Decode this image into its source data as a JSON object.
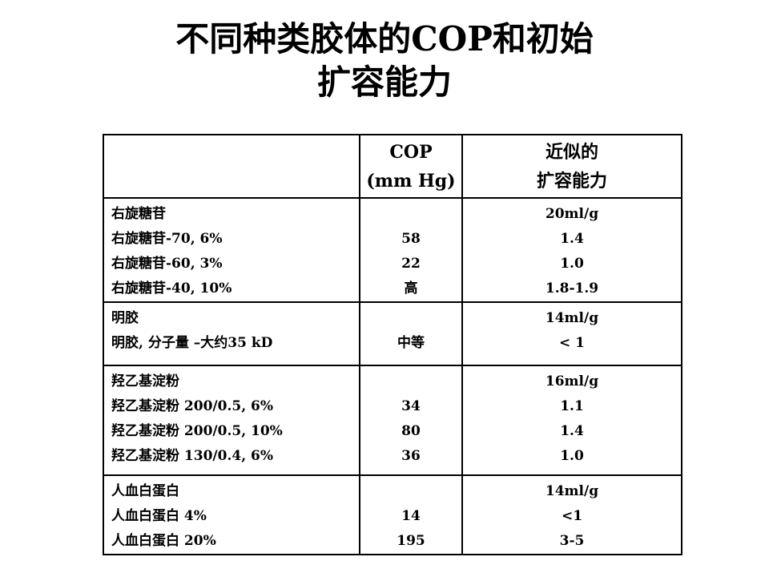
{
  "title": {
    "line1": "不同种类胶体的COP和初始",
    "line2": "扩容能力"
  },
  "table": {
    "headers": {
      "col1": "",
      "cop_line1": "COP",
      "cop_line2": "(mm Hg)",
      "exp_line1": "近似的",
      "exp_line2": "扩容能力"
    },
    "groups": [
      {
        "names": [
          "右旋糖苷",
          "右旋糖苷-70, 6%",
          "右旋糖苷-60, 3%",
          "右旋糖苷-40, 10%"
        ],
        "cop": [
          "",
          "58",
          "22",
          "高"
        ],
        "expansion": [
          "20ml/g",
          "1.4",
          "1.0",
          "1.8-1.9"
        ]
      },
      {
        "names": [
          "明胶",
          "明胶, 分子量 –大约35 kD"
        ],
        "cop": [
          "",
          "中等"
        ],
        "expansion": [
          "14ml/g",
          "< 1"
        ]
      },
      {
        "names": [
          "羟乙基淀粉",
          "羟乙基淀粉 200/0.5, 6%",
          "羟乙基淀粉 200/0.5, 10%",
          "羟乙基淀粉 130/0.4, 6%"
        ],
        "cop": [
          "",
          "34",
          "80",
          "36"
        ],
        "expansion": [
          "16ml/g",
          "1.1",
          "1.4",
          "1.0"
        ]
      },
      {
        "names": [
          "人血白蛋白",
          "人血白蛋白 4%",
          "人血白蛋白 20%"
        ],
        "cop": [
          "",
          "14",
          "195"
        ],
        "expansion": [
          "14ml/g",
          "<1",
          "3-5"
        ]
      }
    ]
  }
}
